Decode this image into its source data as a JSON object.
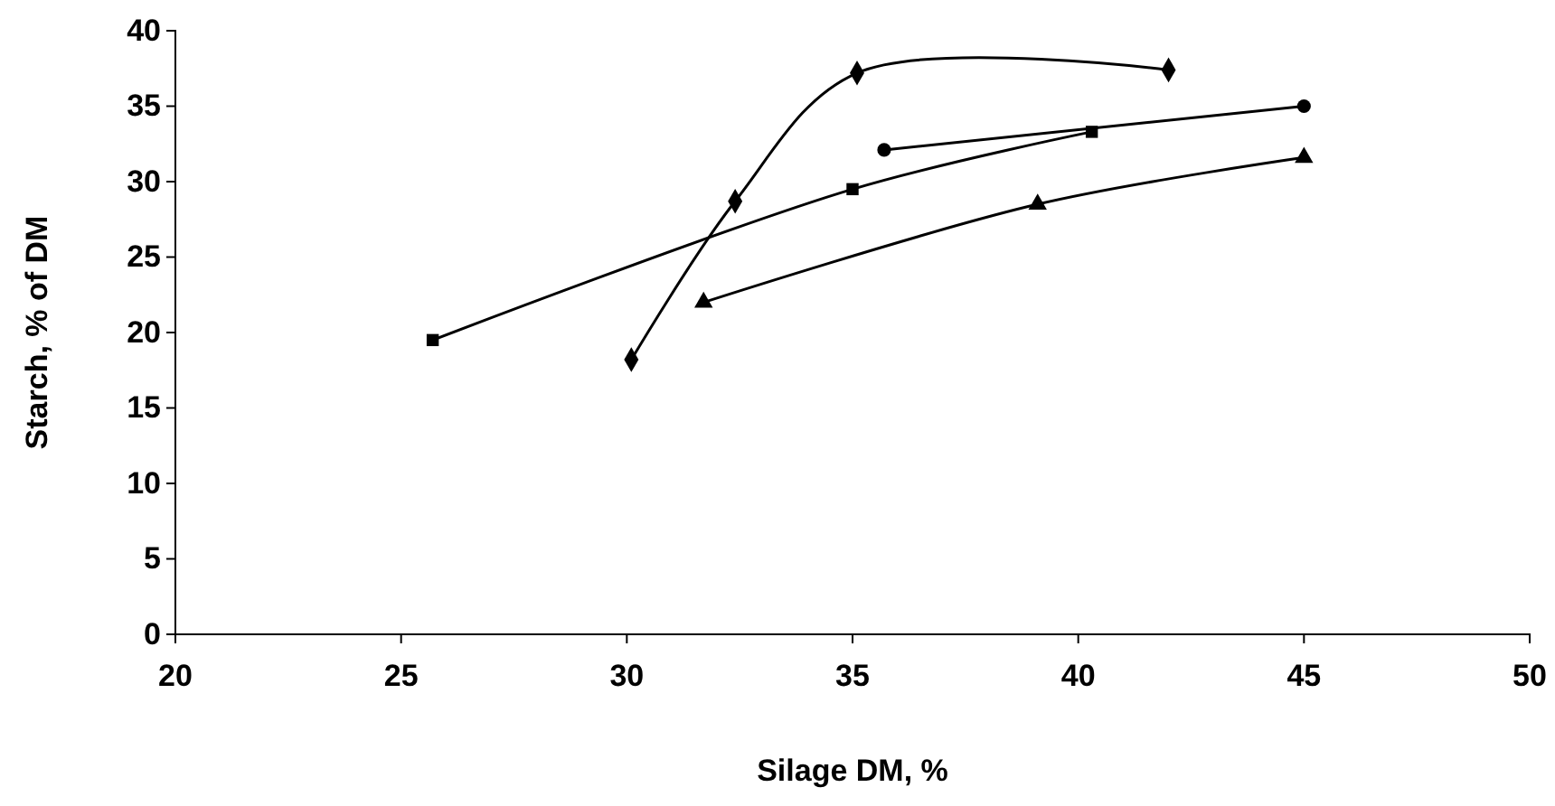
{
  "chart_data": {
    "type": "line",
    "xlabel": "Silage DM, %",
    "ylabel": "Starch, % of DM",
    "xlim": [
      20,
      50
    ],
    "xticks": [
      20,
      25,
      30,
      35,
      40,
      45,
      50
    ],
    "ylim": [
      0,
      40
    ],
    "yticks": [
      0,
      5,
      10,
      15,
      20,
      25,
      30,
      35,
      40
    ],
    "grid": false,
    "line_style": "solid",
    "series": [
      {
        "color": "#000000",
        "marker": "diamond",
        "x": [
          30.1,
          32.4,
          35.1,
          42
        ],
        "values": [
          18.2,
          28.7,
          37.2,
          37.4
        ]
      },
      {
        "color": "#000000",
        "marker": "square",
        "x": [
          25.7,
          35,
          40.3
        ],
        "values": [
          19.5,
          29.5,
          33.3
        ]
      },
      {
        "color": "#000000",
        "marker": "circle",
        "x": [
          35.7,
          45
        ],
        "values": [
          32.1,
          35
        ]
      },
      {
        "color": "#000000",
        "marker": "triangle",
        "x": [
          31.7,
          39.1,
          45
        ],
        "values": [
          22,
          28.5,
          31.6
        ]
      }
    ]
  }
}
